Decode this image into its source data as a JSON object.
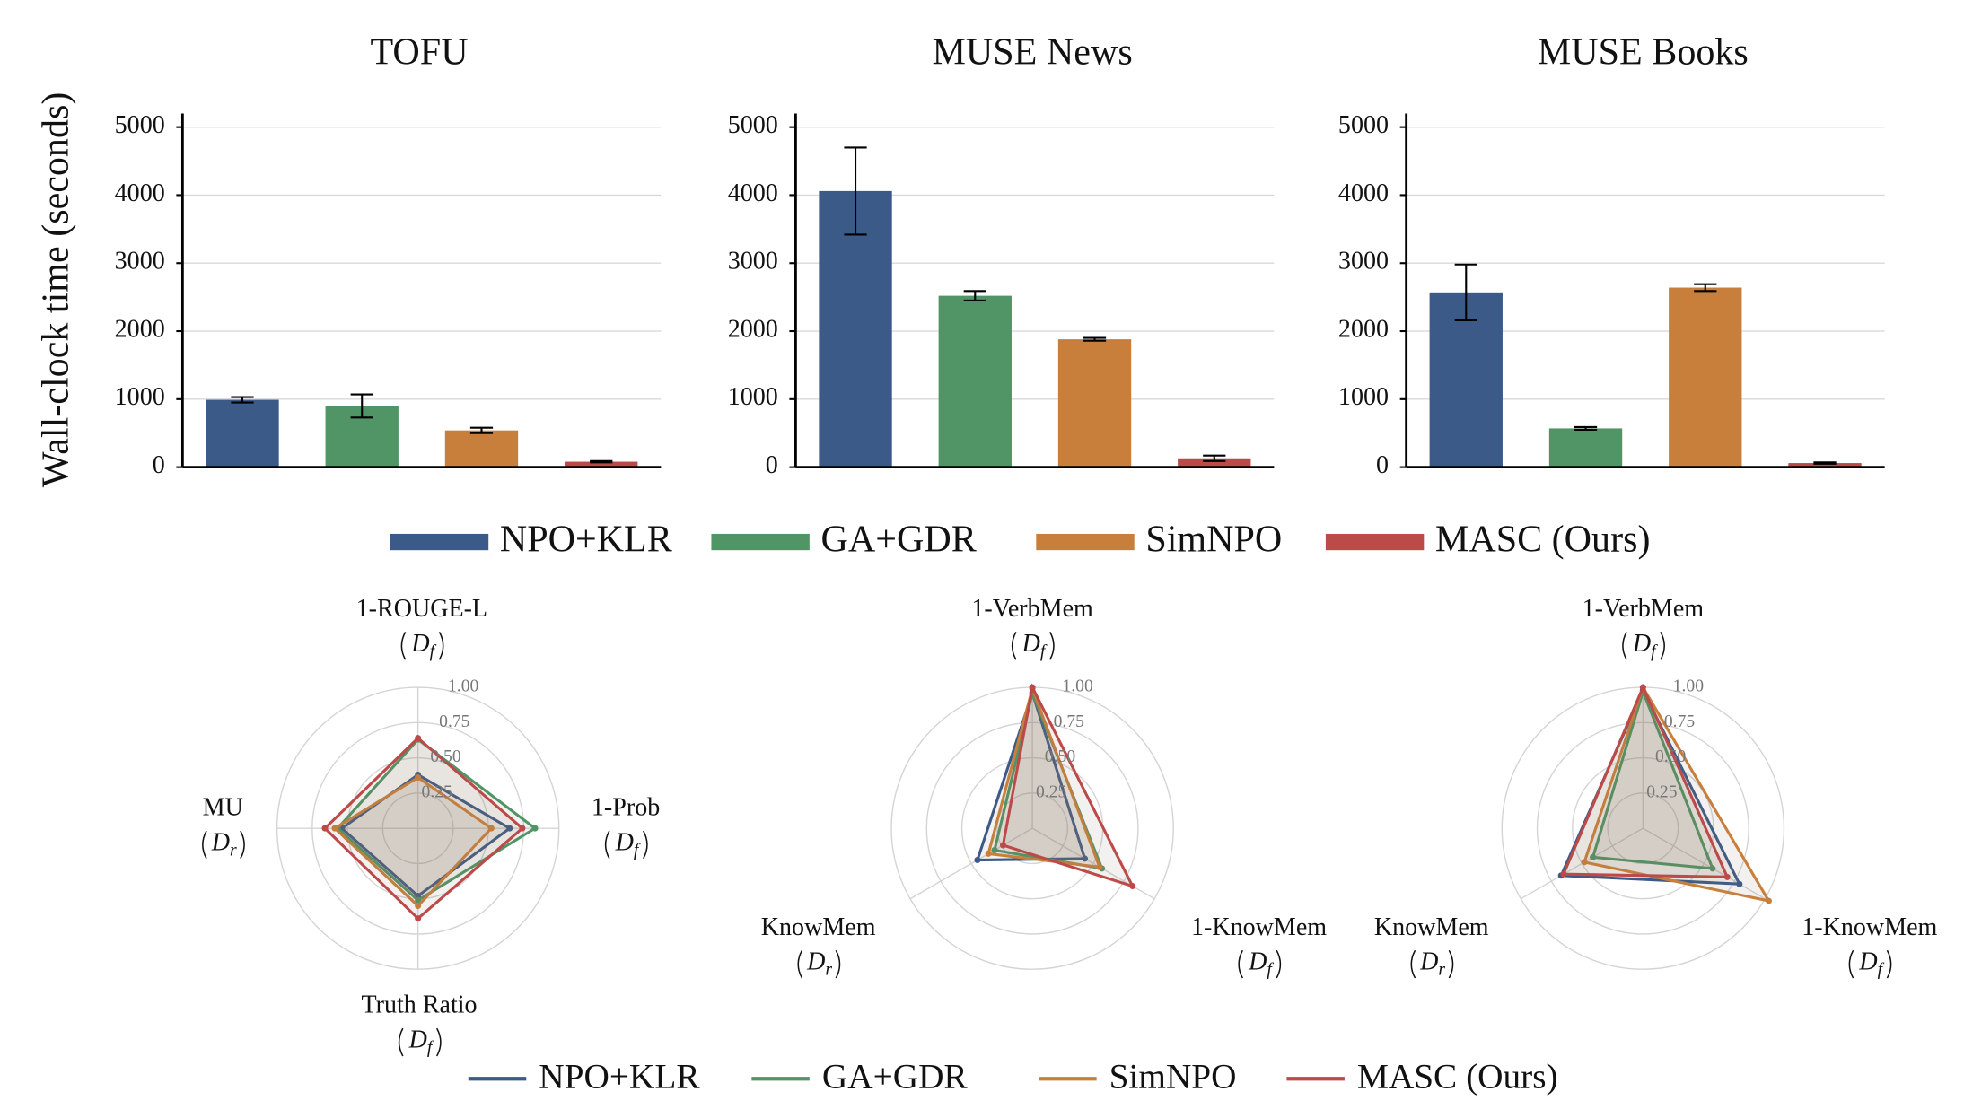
{
  "legend": {
    "series": [
      {
        "name": "NPO+KLR",
        "color": "#3c5a88"
      },
      {
        "name": "GA+GDR",
        "color": "#519465"
      },
      {
        "name": "SimNPO",
        "color": "#c97f3c"
      },
      {
        "name": "MASC (Ours)",
        "color": "#bb4a49"
      }
    ]
  },
  "chart_data": [
    {
      "type": "bar",
      "title": "TOFU",
      "ylabel": "Wall-clock time (seconds)",
      "values": [
        990,
        900,
        540,
        80
      ],
      "errors": [
        40,
        170,
        40,
        10
      ],
      "ylim": [
        0,
        5200
      ],
      "yticks": [
        0,
        1000,
        2000,
        3000,
        4000,
        5000
      ],
      "grid": true
    },
    {
      "type": "bar",
      "title": "MUSE News",
      "values": [
        4060,
        2520,
        1880,
        130
      ],
      "errors": [
        640,
        70,
        20,
        40
      ],
      "ylim": [
        0,
        5200
      ],
      "yticks": [
        0,
        1000,
        2000,
        3000,
        4000,
        5000
      ],
      "grid": true
    },
    {
      "type": "bar",
      "title": "MUSE Books",
      "values": [
        2570,
        570,
        2640,
        60
      ],
      "errors": [
        410,
        20,
        50,
        10
      ],
      "ylim": [
        0,
        5200
      ],
      "yticks": [
        0,
        1000,
        2000,
        3000,
        4000,
        5000
      ],
      "grid": true
    },
    {
      "type": "radar",
      "axes": [
        {
          "label": "1-ROUGE-L",
          "domain": {
            "symbol": "D",
            "subscript": "f"
          }
        },
        {
          "label": "1-Prob",
          "domain": {
            "symbol": "D",
            "subscript": "f"
          }
        },
        {
          "label": "Truth Ratio",
          "domain": {
            "symbol": "D",
            "subscript": "f"
          }
        },
        {
          "label": "MU",
          "domain": {
            "symbol": "D",
            "subscript": "r"
          }
        }
      ],
      "rlim": [
        0,
        1
      ],
      "rticks": [
        0.25,
        {
          "value": 0.5,
          "label": "0.50"
        },
        0.75,
        {
          "value": 1,
          "label": "1.00"
        }
      ],
      "series_values": [
        [
          0.38,
          0.65,
          0.48,
          0.54
        ],
        [
          0.63,
          0.83,
          0.51,
          0.57
        ],
        [
          0.36,
          0.52,
          0.55,
          0.59
        ],
        [
          0.64,
          0.74,
          0.64,
          0.66
        ]
      ]
    },
    {
      "type": "radar",
      "axes": [
        {
          "label": "1-VerbMem",
          "domain": {
            "symbol": "D",
            "subscript": "f"
          }
        },
        {
          "label": "1-KnowMem",
          "domain": {
            "symbol": "D",
            "subscript": "f"
          }
        },
        {
          "label": "KnowMem",
          "domain": {
            "symbol": "D",
            "subscript": "r"
          }
        }
      ],
      "rlim": [
        0,
        1
      ],
      "rticks": [
        0.25,
        {
          "value": 0.5,
          "label": "0.50"
        },
        0.75,
        {
          "value": 1,
          "label": "1.00"
        }
      ],
      "series_values": [
        [
          0.96,
          0.43,
          0.45
        ],
        [
          0.96,
          0.57,
          0.31
        ],
        [
          0.99,
          0.55,
          0.36
        ],
        [
          1,
          0.82,
          0.24
        ]
      ]
    },
    {
      "type": "radar",
      "axes": [
        {
          "label": "1-VerbMem",
          "domain": {
            "symbol": "D",
            "subscript": "f"
          }
        },
        {
          "label": "1-KnowMem",
          "domain": {
            "symbol": "D",
            "subscript": "f"
          }
        },
        {
          "label": "KnowMem",
          "domain": {
            "symbol": "D",
            "subscript": "r"
          }
        }
      ],
      "rlim": [
        0,
        1
      ],
      "rticks": [
        0.25,
        {
          "value": 0.5,
          "label": "0.50"
        },
        0.75,
        {
          "value": 1,
          "label": "1.00"
        }
      ],
      "series_values": [
        [
          0.98,
          0.79,
          0.67
        ],
        [
          0.97,
          0.57,
          0.41
        ],
        [
          1,
          1.03,
          0.48
        ],
        [
          1,
          0.69,
          0.65
        ]
      ]
    }
  ]
}
